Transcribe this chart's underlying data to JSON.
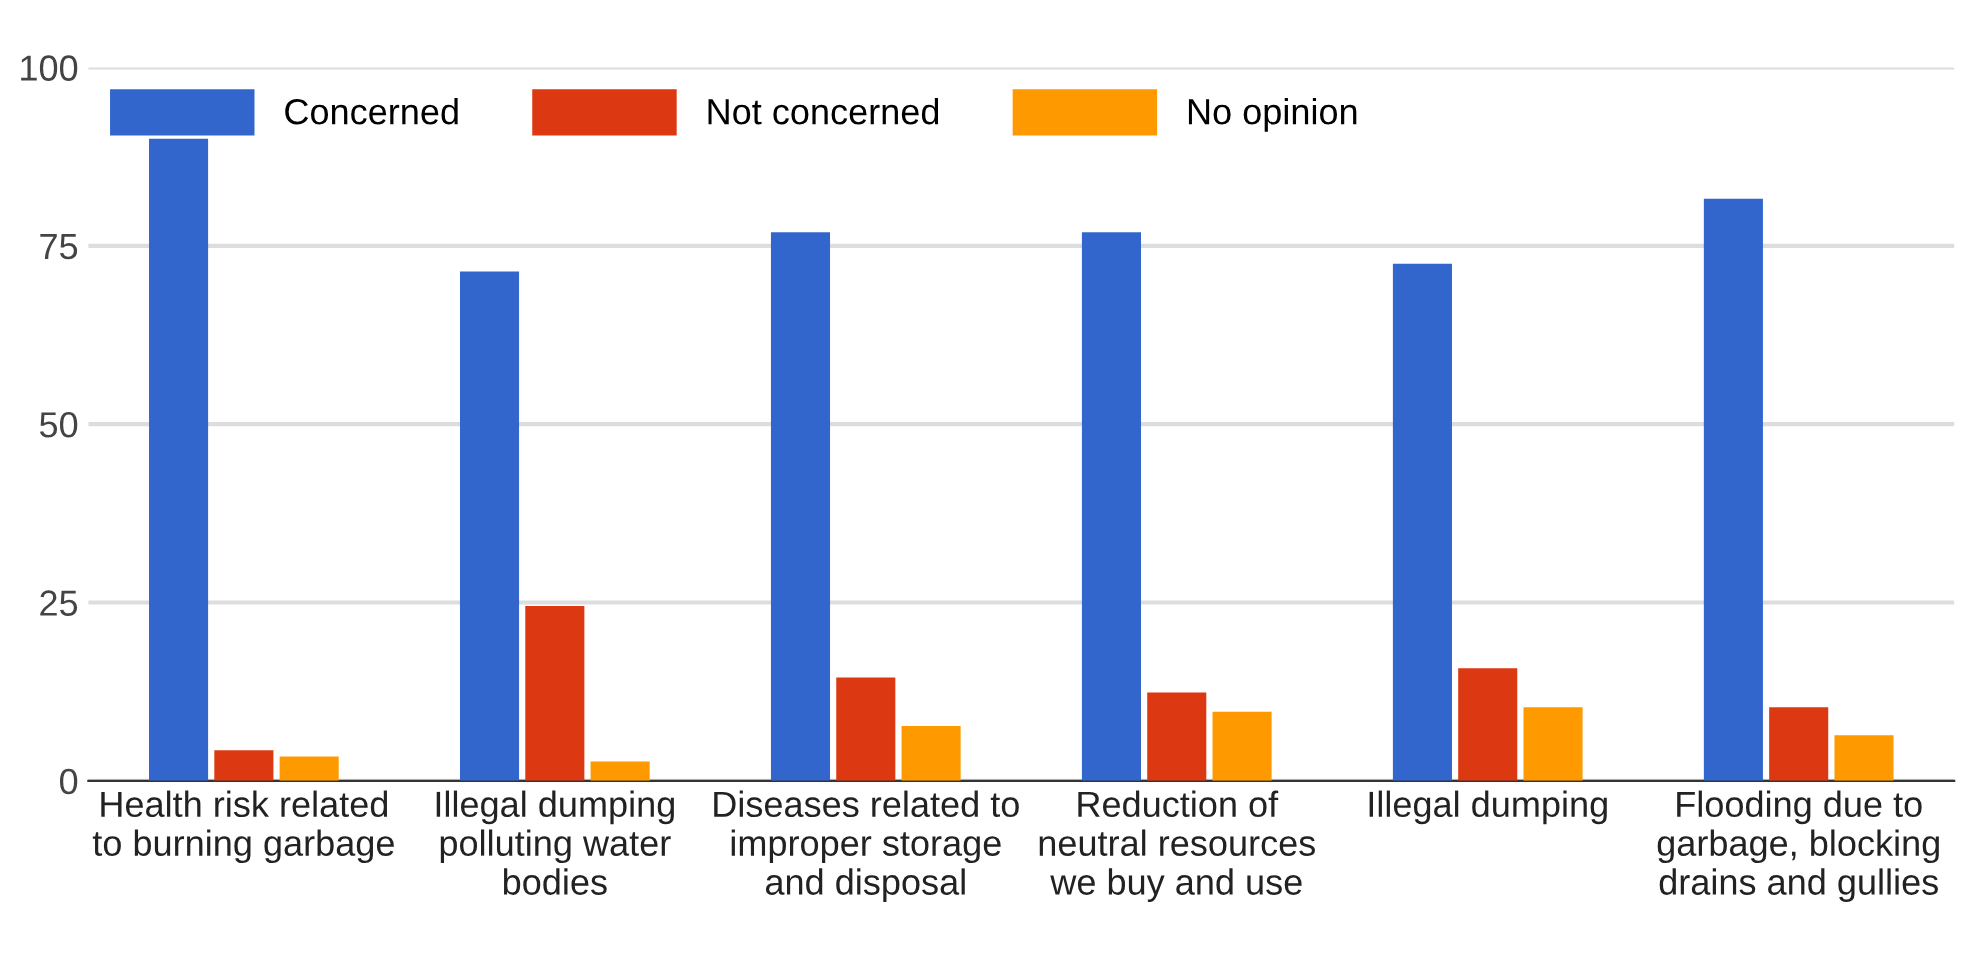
{
  "chart_data": {
    "type": "bar",
    "categories": [
      "Health risk related\nto burning garbage",
      "Illegal dumping\npolluting water\nbodies",
      "Diseases related to\nimproper storage\nand disposal",
      "Reduction of\nneutral resources\nwe buy and use",
      "Illegal dumping",
      "Flooding due to\ngarbage, blocking\ndrains and gullies"
    ],
    "series": [
      {
        "name": "Concerned",
        "color": "#3366cc",
        "values": [
          90,
          71.4,
          76.9,
          76.9,
          72.5,
          81.6
        ]
      },
      {
        "name": "Not concerned",
        "color": "#dc3912",
        "values": [
          4.3,
          24.5,
          14.5,
          12.4,
          15.8,
          10.3
        ]
      },
      {
        "name": "No opinion",
        "color": "#ff9900",
        "values": [
          3.4,
          2.7,
          7.7,
          9.7,
          10.3,
          6.4
        ]
      }
    ],
    "ylim": [
      0,
      100
    ],
    "yticks": [
      0,
      25,
      50,
      75,
      100
    ],
    "grid": "y",
    "legend": "top left"
  }
}
